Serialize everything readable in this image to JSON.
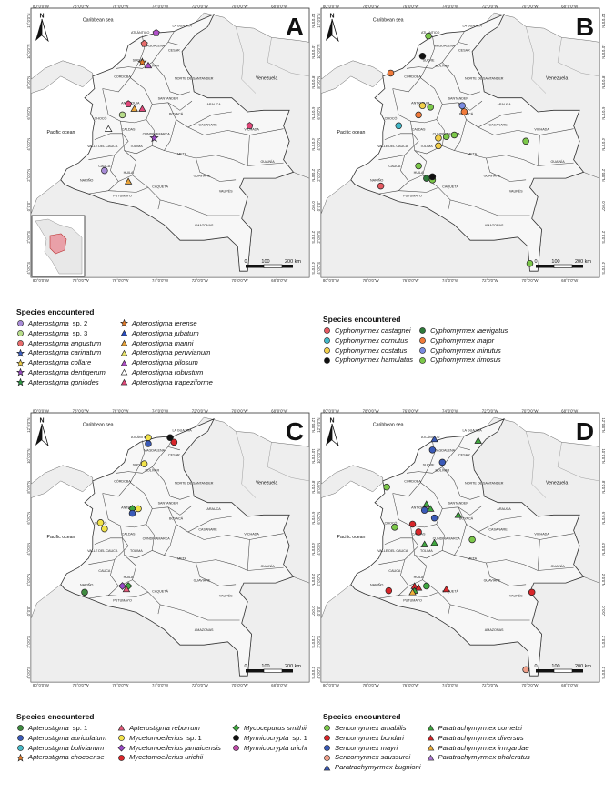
{
  "common": {
    "sea_label": "Caribbean sea",
    "ocean_label": "Pacific ocean",
    "country_label": "Venezuela",
    "north_label": "N",
    "scale": {
      "zero": "0",
      "mid": "100",
      "end": "200 km"
    },
    "lon_ticks": [
      "80°0'0\"W",
      "78°0'0\"W",
      "76°0'0\"W",
      "74°0'0\"W",
      "72°0'0\"W",
      "70°0'0\"W",
      "68°0'0\"W"
    ],
    "lat_ticks": [
      "12°0'0\"N",
      "10°0'0\"N",
      "8°0'0\"N",
      "6°0'0\"N",
      "4°0'0\"N",
      "2°0'0\"N",
      "0°0'0\"",
      "2°0'0\"S",
      "4°0'0\"S"
    ],
    "departments": [
      "LA GUAJIRA",
      "ATLÁNTICO",
      "MAGDALENA",
      "CESAR",
      "SUCRE",
      "BOLÍVAR",
      "CÓRDOBA",
      "NORTE DE SANTANDER",
      "SANTANDER",
      "ANTIOQUIA",
      "ARAUCA",
      "CHOCÓ",
      "BOYACÁ",
      "CASANARE",
      "VICHADA",
      "CALDAS",
      "CUNDINAMARCA",
      "TOLIMA",
      "META",
      "VALLE DEL CAUCA",
      "GUAINÍA",
      "GUAVIARE",
      "CAUCA",
      "HUILA",
      "NARIÑO",
      "PUTUMAYO",
      "CAQUETÁ",
      "VAUPÉS",
      "AMAZONAS"
    ],
    "legend_title": "Species encountered"
  },
  "panels": [
    {
      "letter": "A",
      "legend": [
        {
          "genus": "Apterostigma",
          "rest": " sp. 2",
          "color": "#a78bd6",
          "shape": "circle"
        },
        {
          "genus": "Apterostigma",
          "rest": " sp. 3",
          "color": "#b7dc8a",
          "shape": "circle"
        },
        {
          "genus": "Apterostigma angustum",
          "rest": "",
          "color": "#e66c6c",
          "shape": "circle"
        },
        {
          "genus": "Apterostigma carinatum",
          "rest": "",
          "color": "#3f63c9",
          "shape": "star"
        },
        {
          "genus": "Apterostigma collare",
          "rest": "",
          "color": "#f0cf4a",
          "shape": "star"
        },
        {
          "genus": "Apterostigma dentigerum",
          "rest": "",
          "color": "#9a4cc2",
          "shape": "star"
        },
        {
          "genus": "Apterostigma goniodes",
          "rest": "",
          "color": "#2f9a45",
          "shape": "star"
        },
        {
          "genus": "Apterostigma ierense",
          "rest": "",
          "color": "#e07b2a",
          "shape": "star"
        },
        {
          "genus": "Apterostigma jubatum",
          "rest": "",
          "color": "#2a4fc4",
          "shape": "triangle"
        },
        {
          "genus": "Apterostigma manni",
          "rest": "",
          "color": "#e8a33a",
          "shape": "triangle"
        },
        {
          "genus": "Apterostigma peruvianum",
          "rest": "",
          "color": "#e8e46a",
          "shape": "triangle"
        },
        {
          "genus": "Apterostigma pilosum",
          "rest": "",
          "color": "#b04fc8",
          "shape": "triangle"
        },
        {
          "genus": "Apterostigma robustum",
          "rest": "",
          "color": "#ffffff",
          "shape": "triangle"
        },
        {
          "genus": "Apterostigma trapeziforme",
          "rest": "",
          "color": "#e0487a",
          "shape": "triangle"
        }
      ],
      "points": [
        {
          "lon": -74.2,
          "lat": 11.2,
          "c": "#b04fc8",
          "s": "pentagon"
        },
        {
          "lon": -74.8,
          "lat": 10.5,
          "c": "#e66c6c",
          "s": "pentagon"
        },
        {
          "lon": -74.9,
          "lat": 9.3,
          "c": "#e07b2a",
          "s": "star"
        },
        {
          "lon": -74.6,
          "lat": 9.1,
          "c": "#b04fc8",
          "s": "triangle"
        },
        {
          "lon": -75.6,
          "lat": 6.6,
          "c": "#e0487a",
          "s": "pentagon"
        },
        {
          "lon": -75.3,
          "lat": 6.3,
          "c": "#e8a33a",
          "s": "triangle"
        },
        {
          "lon": -74.9,
          "lat": 6.3,
          "c": "#e0487a",
          "s": "triangle"
        },
        {
          "lon": -75.9,
          "lat": 5.9,
          "c": "#b7dc8a",
          "s": "circle"
        },
        {
          "lon": -76.6,
          "lat": 5.0,
          "c": "#ffffff",
          "s": "triangle"
        },
        {
          "lon": -74.3,
          "lat": 4.4,
          "c": "#9a4cc2",
          "s": "star"
        },
        {
          "lon": -76.8,
          "lat": 2.3,
          "c": "#a78bd6",
          "s": "circle"
        },
        {
          "lon": -75.6,
          "lat": 1.6,
          "c": "#e8a33a",
          "s": "triangle"
        },
        {
          "lon": -69.5,
          "lat": 5.2,
          "c": "#e0487a",
          "s": "pentagon"
        }
      ]
    },
    {
      "letter": "B",
      "legend": [
        {
          "genus": "Cyphomyrmex castagnei",
          "rest": "",
          "color": "#e65a62",
          "shape": "circle"
        },
        {
          "genus": "Cyphomyrmex cornutus",
          "rest": "",
          "color": "#42b8c8",
          "shape": "circle"
        },
        {
          "genus": "Cyphomyrmex costatus",
          "rest": "",
          "color": "#f2cf4a",
          "shape": "circle"
        },
        {
          "genus": "Cyphomyrmex hamulatus",
          "rest": "",
          "color": "#111111",
          "shape": "circle"
        },
        {
          "genus": "Cyphomyrmex laevigatus",
          "rest": "",
          "color": "#2f7a3a",
          "shape": "circle"
        },
        {
          "genus": "Cyphomyrmex major",
          "rest": "",
          "color": "#f07a3a",
          "shape": "circle"
        },
        {
          "genus": "Cyphomyrmex minutus",
          "rest": "",
          "color": "#7a8be0",
          "shape": "circle"
        },
        {
          "genus": "Cyphomyrmex rimosus",
          "rest": "",
          "color": "#7cc84a",
          "shape": "circle"
        }
      ],
      "points": [
        {
          "lon": -75.1,
          "lat": 11.0,
          "c": "#7cc84a",
          "s": "circle"
        },
        {
          "lon": -75.4,
          "lat": 9.7,
          "c": "#111111",
          "s": "circle"
        },
        {
          "lon": -77.0,
          "lat": 8.6,
          "c": "#f07a3a",
          "s": "circle"
        },
        {
          "lon": -75.4,
          "lat": 6.5,
          "c": "#f2cf4a",
          "s": "circle"
        },
        {
          "lon": -75.0,
          "lat": 6.4,
          "c": "#7cc84a",
          "s": "circle"
        },
        {
          "lon": -73.4,
          "lat": 6.5,
          "c": "#7a8be0",
          "s": "circle"
        },
        {
          "lon": -75.6,
          "lat": 5.9,
          "c": "#f07a3a",
          "s": "circle"
        },
        {
          "lon": -73.3,
          "lat": 6.1,
          "c": "#f07a3a",
          "s": "circle"
        },
        {
          "lon": -76.6,
          "lat": 5.2,
          "c": "#42b8c8",
          "s": "circle"
        },
        {
          "lon": -73.8,
          "lat": 4.6,
          "c": "#7cc84a",
          "s": "circle"
        },
        {
          "lon": -74.2,
          "lat": 4.5,
          "c": "#7cc84a",
          "s": "circle"
        },
        {
          "lon": -74.6,
          "lat": 3.9,
          "c": "#f2cf4a",
          "s": "circle"
        },
        {
          "lon": -74.6,
          "lat": 4.4,
          "c": "#f2cf4a",
          "s": "circle"
        },
        {
          "lon": -75.6,
          "lat": 2.6,
          "c": "#7cc84a",
          "s": "circle"
        },
        {
          "lon": -75.2,
          "lat": 1.8,
          "c": "#2f7a3a",
          "s": "circle"
        },
        {
          "lon": -74.9,
          "lat": 1.7,
          "c": "#7cc84a",
          "s": "circle"
        },
        {
          "lon": -74.9,
          "lat": 1.9,
          "c": "#111111",
          "s": "circle"
        },
        {
          "lon": -77.5,
          "lat": 1.3,
          "c": "#e65a62",
          "s": "circle"
        },
        {
          "lon": -70.2,
          "lat": 4.2,
          "c": "#7cc84a",
          "s": "circle"
        },
        {
          "lon": -70.0,
          "lat": -3.7,
          "c": "#7cc84a",
          "s": "circle"
        }
      ]
    },
    {
      "letter": "C",
      "legend": [
        {
          "genus": "Apterostigma",
          "rest": " sp. 1",
          "color": "#3f8a3f",
          "shape": "circle"
        },
        {
          "genus": "Apterostigma auriculatum",
          "rest": "",
          "color": "#3a5ab8",
          "shape": "circle"
        },
        {
          "genus": "Apterostigma bolivianum",
          "rest": "",
          "color": "#45b8c6",
          "shape": "circle"
        },
        {
          "genus": "Apterostigma chocoense",
          "rest": "",
          "color": "#e07a2a",
          "shape": "star"
        },
        {
          "genus": "Apterostigma reburrum",
          "rest": "",
          "color": "#e75a7a",
          "shape": "triangle"
        },
        {
          "genus": "Mycetomoellerius",
          "rest": " sp. 1",
          "color": "#f2e34a",
          "shape": "circle"
        },
        {
          "genus": "Mycetomoellerius jamaicensis",
          "rest": "",
          "color": "#9a4ac8",
          "shape": "diamond"
        },
        {
          "genus": "Mycetomoellerius urichii",
          "rest": "",
          "color": "#d9262a",
          "shape": "circle"
        },
        {
          "genus": "Mycocepurus smithii",
          "rest": "",
          "color": "#3fa83f",
          "shape": "diamond"
        },
        {
          "genus": "Myrmicocrypta",
          "rest": " sp. 1",
          "color": "#111111",
          "shape": "circle"
        },
        {
          "genus": "Myrmicocrypta urichi",
          "rest": "",
          "color": "#c04aa8",
          "shape": "circle"
        }
      ],
      "points": [
        {
          "lon": -74.6,
          "lat": 11.2,
          "c": "#f2e34a",
          "s": "circle"
        },
        {
          "lon": -73.5,
          "lat": 11.2,
          "c": "#111111",
          "s": "circle"
        },
        {
          "lon": -73.3,
          "lat": 10.9,
          "c": "#d9262a",
          "s": "circle"
        },
        {
          "lon": -74.6,
          "lat": 10.8,
          "c": "#3a5ab8",
          "s": "circle"
        },
        {
          "lon": -74.8,
          "lat": 9.5,
          "c": "#f2e34a",
          "s": "circle"
        },
        {
          "lon": -75.4,
          "lat": 6.6,
          "c": "#3fa83f",
          "s": "diamond"
        },
        {
          "lon": -75.1,
          "lat": 6.6,
          "c": "#f2e34a",
          "s": "circle"
        },
        {
          "lon": -75.4,
          "lat": 6.3,
          "c": "#3a5ab8",
          "s": "circle"
        },
        {
          "lon": -77.0,
          "lat": 5.7,
          "c": "#f2e34a",
          "s": "circle"
        },
        {
          "lon": -76.8,
          "lat": 5.3,
          "c": "#f2e34a",
          "s": "circle"
        },
        {
          "lon": -77.8,
          "lat": 1.2,
          "c": "#3f8a3f",
          "s": "circle"
        },
        {
          "lon": -75.9,
          "lat": 1.6,
          "c": "#9a4ac8",
          "s": "diamond"
        },
        {
          "lon": -75.6,
          "lat": 1.6,
          "c": "#3fa83f",
          "s": "diamond"
        },
        {
          "lon": -75.7,
          "lat": 1.4,
          "c": "#e75a7a",
          "s": "triangle"
        }
      ]
    },
    {
      "letter": "D",
      "legend": [
        {
          "genus": "Sericomyrmex amabilis",
          "rest": "",
          "color": "#7cc84a",
          "shape": "circle"
        },
        {
          "genus": "Sericomyrmex bondari",
          "rest": "",
          "color": "#d9262a",
          "shape": "circle"
        },
        {
          "genus": "Sericomyrmex mayri",
          "rest": "",
          "color": "#3a5ab8",
          "shape": "circle"
        },
        {
          "genus": "Sericomyrmex saussurei",
          "rest": "",
          "color": "#f0a08a",
          "shape": "circle"
        },
        {
          "genus": "Paratrachymyrmex bugnioni",
          "rest": "",
          "color": "#3a5ab8",
          "shape": "triangle"
        },
        {
          "genus": "Paratrachymyrmex cornetzi",
          "rest": "",
          "color": "#3fa83f",
          "shape": "triangle"
        },
        {
          "genus": "Paratrachymyrmex diversus",
          "rest": "",
          "color": "#d9262a",
          "shape": "triangle"
        },
        {
          "genus": "Paratrachymyrmex irmgardae",
          "rest": "",
          "color": "#f0b03a",
          "shape": "triangle"
        },
        {
          "genus": "Paratrachymyrmex phaleratus",
          "rest": "",
          "color": "#b07ad8",
          "shape": "triangle"
        }
      ],
      "points": [
        {
          "lon": -74.8,
          "lat": 11.1,
          "c": "#3a5ab8",
          "s": "triangle"
        },
        {
          "lon": -72.6,
          "lat": 11.0,
          "c": "#3fa83f",
          "s": "triangle"
        },
        {
          "lon": -74.9,
          "lat": 10.4,
          "c": "#3a5ab8",
          "s": "circle"
        },
        {
          "lon": -74.4,
          "lat": 9.6,
          "c": "#3a5ab8",
          "s": "circle"
        },
        {
          "lon": -77.2,
          "lat": 8.0,
          "c": "#7cc84a",
          "s": "circle"
        },
        {
          "lon": -75.2,
          "lat": 6.9,
          "c": "#3fa83f",
          "s": "triangle"
        },
        {
          "lon": -75.0,
          "lat": 6.6,
          "c": "#3fa83f",
          "s": "triangle"
        },
        {
          "lon": -75.3,
          "lat": 6.5,
          "c": "#3a5ab8",
          "s": "circle"
        },
        {
          "lon": -73.6,
          "lat": 6.2,
          "c": "#3fa83f",
          "s": "triangle"
        },
        {
          "lon": -74.8,
          "lat": 6.0,
          "c": "#3a5ab8",
          "s": "circle"
        },
        {
          "lon": -75.9,
          "lat": 5.6,
          "c": "#d9262a",
          "s": "circle"
        },
        {
          "lon": -76.8,
          "lat": 5.4,
          "c": "#7cc84a",
          "s": "circle"
        },
        {
          "lon": -75.6,
          "lat": 5.1,
          "c": "#d9262a",
          "s": "circle"
        },
        {
          "lon": -72.9,
          "lat": 4.6,
          "c": "#7cc84a",
          "s": "circle"
        },
        {
          "lon": -74.8,
          "lat": 4.4,
          "c": "#3fa83f",
          "s": "triangle"
        },
        {
          "lon": -75.3,
          "lat": 4.3,
          "c": "#3fa83f",
          "s": "triangle"
        },
        {
          "lon": -77.1,
          "lat": 1.3,
          "c": "#d9262a",
          "s": "circle"
        },
        {
          "lon": -75.8,
          "lat": 1.6,
          "c": "#d9262a",
          "s": "triangle"
        },
        {
          "lon": -75.6,
          "lat": 1.5,
          "c": "#d9262a",
          "s": "triangle"
        },
        {
          "lon": -75.2,
          "lat": 1.6,
          "c": "#3fa83f",
          "s": "circle"
        },
        {
          "lon": -75.8,
          "lat": 1.3,
          "c": "#3fa83f",
          "s": "triangle"
        },
        {
          "lon": -74.2,
          "lat": 1.4,
          "c": "#d9262a",
          "s": "triangle"
        },
        {
          "lon": -75.9,
          "lat": 1.2,
          "c": "#f0b03a",
          "s": "triangle"
        },
        {
          "lon": -69.9,
          "lat": 1.2,
          "c": "#d9262a",
          "s": "circle"
        },
        {
          "lon": -70.2,
          "lat": -3.8,
          "c": "#f0a08a",
          "s": "circle"
        }
      ]
    }
  ]
}
